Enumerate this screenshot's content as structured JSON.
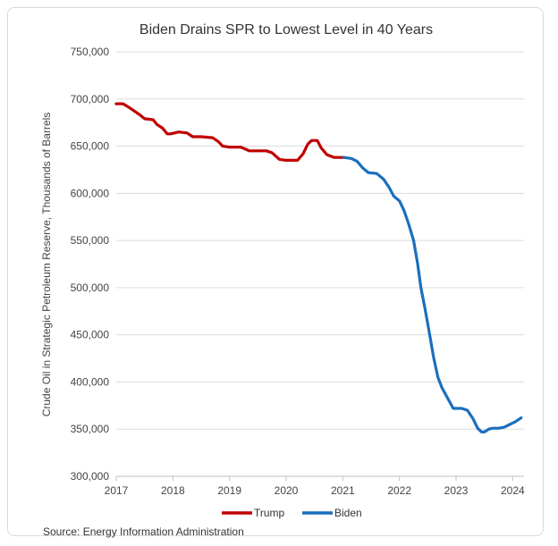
{
  "chart_data": {
    "type": "line",
    "title": "Biden Drains SPR to Lowest Level in 40 Years",
    "ylabel": "Crude Oil in Strategic Petroleum Reserve, Thousands of Barrels",
    "xlabel": "",
    "ylim": [
      300000,
      750000
    ],
    "xlim": [
      2017,
      2024.2
    ],
    "yticks": [
      300000,
      350000,
      400000,
      450000,
      500000,
      550000,
      600000,
      650000,
      700000,
      750000
    ],
    "ytick_labels": [
      "300,000",
      "350,000",
      "400,000",
      "450,000",
      "500,000",
      "550,000",
      "600,000",
      "650,000",
      "700,000",
      "750,000"
    ],
    "xticks": [
      2017,
      2018,
      2019,
      2020,
      2021,
      2022,
      2023,
      2024
    ],
    "xtick_labels": [
      "2017",
      "2018",
      "2019",
      "2020",
      "2021",
      "2022",
      "2023",
      "2024"
    ],
    "grid": "horizontal",
    "legend_position": "bottom",
    "series": [
      {
        "name": "Trump",
        "color": "#c00000",
        "x": [
          2017.0,
          2017.12,
          2017.2,
          2017.3,
          2017.42,
          2017.5,
          2017.65,
          2017.72,
          2017.82,
          2017.9,
          2017.96,
          2018.1,
          2018.25,
          2018.35,
          2018.5,
          2018.7,
          2018.8,
          2018.88,
          2019.0,
          2019.2,
          2019.35,
          2019.45,
          2019.65,
          2019.75,
          2019.88,
          2020.0,
          2020.2,
          2020.3,
          2020.38,
          2020.45,
          2020.55,
          2020.62,
          2020.72,
          2020.85,
          2021.02
        ],
        "y": [
          695000,
          695000,
          692000,
          688000,
          683000,
          679000,
          678000,
          673000,
          669000,
          663000,
          663000,
          665000,
          664000,
          660000,
          660000,
          659000,
          655000,
          650000,
          649000,
          649000,
          645000,
          645000,
          645000,
          643000,
          636000,
          635000,
          635000,
          642000,
          652000,
          656000,
          656000,
          648000,
          641000,
          638000,
          638000
        ]
      },
      {
        "name": "Biden",
        "color": "#1a6fbd",
        "x": [
          2021.02,
          2021.15,
          2021.25,
          2021.35,
          2021.45,
          2021.6,
          2021.72,
          2021.82,
          2021.9,
          2022.0,
          2022.08,
          2022.16,
          2022.25,
          2022.32,
          2022.38,
          2022.45,
          2022.52,
          2022.6,
          2022.68,
          2022.75,
          2022.85,
          2022.95,
          2023.0,
          2023.1,
          2023.2,
          2023.3,
          2023.38,
          2023.45,
          2023.5,
          2023.58,
          2023.65,
          2023.75,
          2023.85,
          2023.95,
          2024.05,
          2024.15
        ],
        "y": [
          638000,
          637000,
          634000,
          627000,
          622000,
          621000,
          615000,
          606000,
          597000,
          592000,
          582000,
          568000,
          550000,
          526000,
          500000,
          478000,
          455000,
          427000,
          405000,
          394000,
          383000,
          372000,
          372000,
          372000,
          370000,
          361000,
          351000,
          347000,
          347000,
          350000,
          351000,
          351000,
          352000,
          355000,
          358000,
          362000
        ]
      }
    ],
    "source": "Source: Energy Information Administration"
  }
}
